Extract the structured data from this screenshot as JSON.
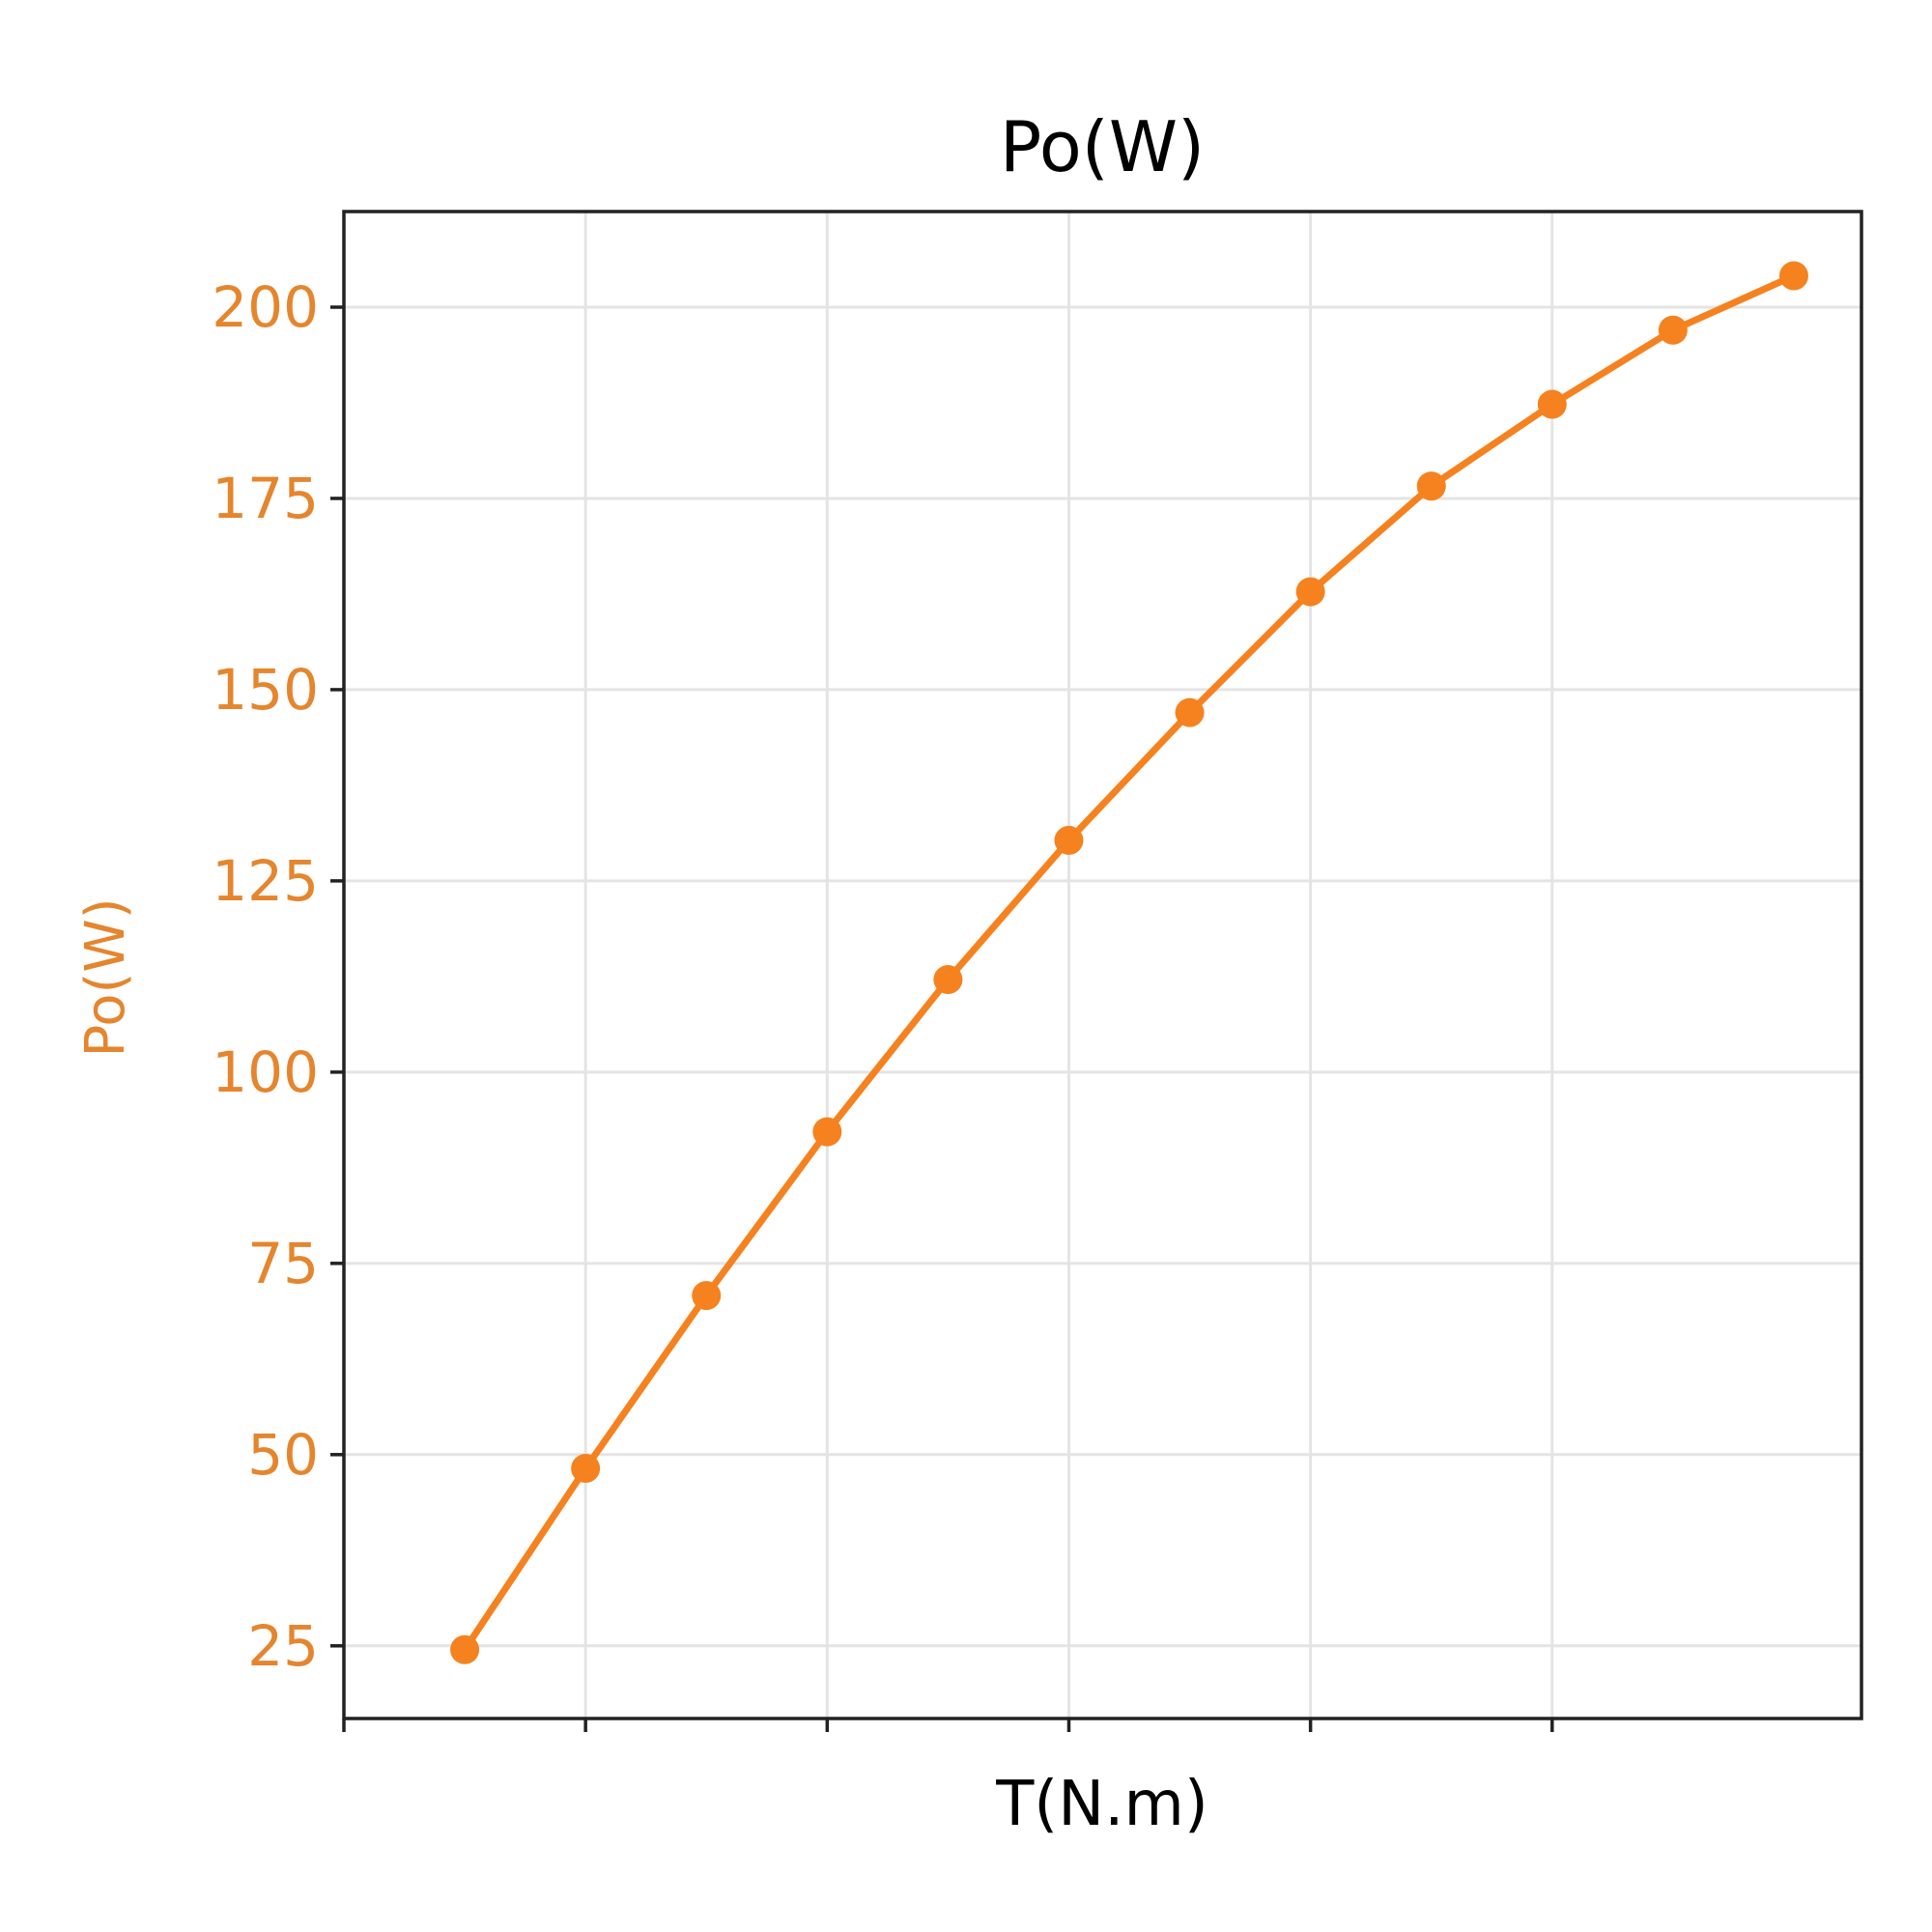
{
  "chart_data": {
    "type": "line",
    "title": "Po(W)",
    "xlabel": "T(N.m)",
    "ylabel": "Po(W)",
    "x": [
      0.5,
      1.0,
      1.5,
      2.0,
      2.5,
      3.0,
      3.5,
      4.0,
      4.5,
      5.0,
      5.5,
      6.0
    ],
    "xlim": [
      0.0,
      6.28
    ],
    "xticks": [
      0.0,
      1.0,
      2.0,
      3.0,
      4.0,
      5.0
    ],
    "xtick_labels_shown": false,
    "series": [
      {
        "values": [
          24.5,
          48.2,
          70.8,
          92.2,
          112.1,
          130.3,
          147.0,
          162.8,
          176.6,
          187.3,
          197.0,
          204.1
        ],
        "color": "#f5821f",
        "marker": "circle"
      }
    ],
    "ylim": [
      15.5,
      212.5
    ],
    "yticks": [
      25,
      50,
      75,
      100,
      125,
      150,
      175,
      200
    ],
    "ytick_labels": [
      "25",
      "50",
      "75",
      "100",
      "125",
      "150",
      "175",
      "200"
    ],
    "ytick_color": "#e5852d",
    "ylabel_color": "#e5852d",
    "grid": true,
    "legend": "none"
  }
}
